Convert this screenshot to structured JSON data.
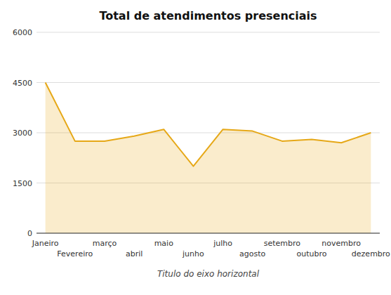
{
  "chart_data": {
    "type": "area",
    "title": "Total de atendimentos presenciais",
    "x_label": "Titulo do eixo horizontal",
    "categories": [
      "Janeiro",
      "Fevereiro",
      "março",
      "abril",
      "maio",
      "junho",
      "julho",
      "agosto",
      "setembro",
      "outubro",
      "novembro",
      "dezembro"
    ],
    "values": [
      4500,
      2750,
      2750,
      2900,
      3100,
      2000,
      3100,
      3050,
      2750,
      2800,
      2700,
      3000
    ],
    "color": "#E6A817",
    "ylim": [
      0,
      6000
    ],
    "yticks": [
      0,
      1500,
      3000,
      4500,
      6000
    ],
    "grid": true
  }
}
